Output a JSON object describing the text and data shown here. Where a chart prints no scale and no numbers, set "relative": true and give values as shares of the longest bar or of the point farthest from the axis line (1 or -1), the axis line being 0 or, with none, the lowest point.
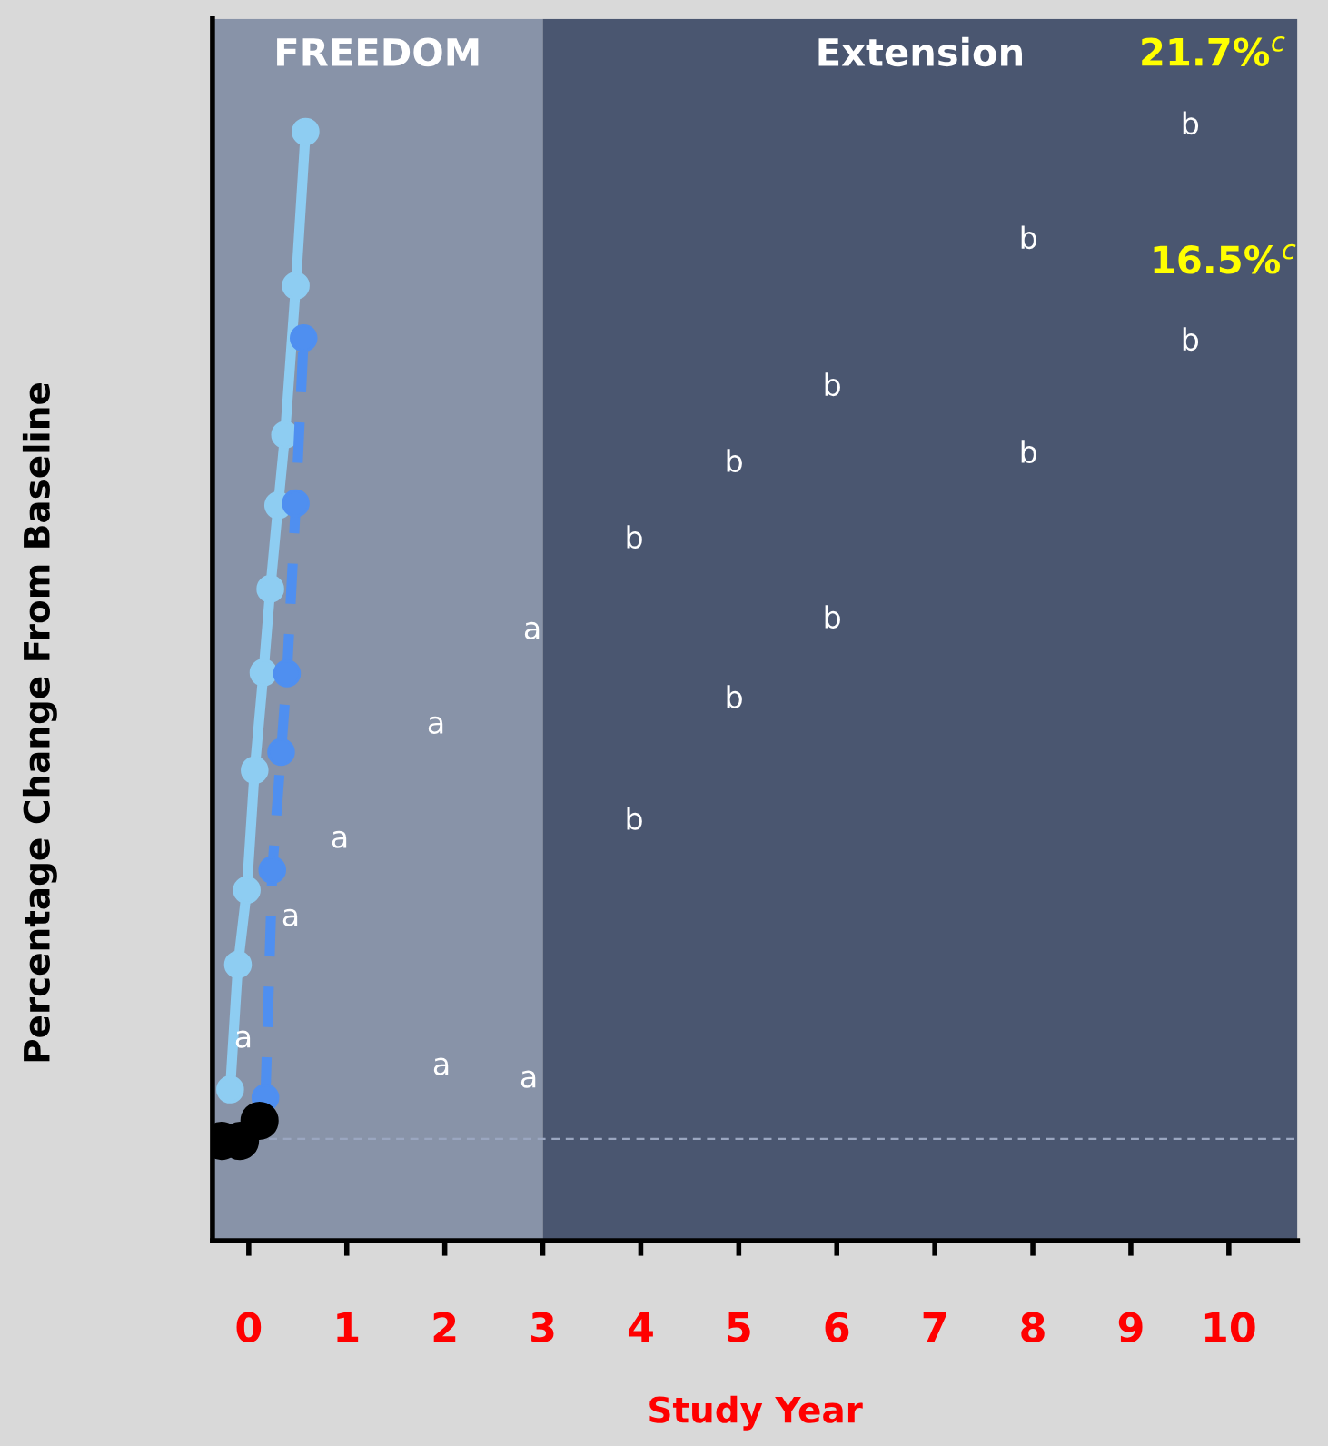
{
  "chart_data": {
    "type": "line",
    "relative": true,
    "xlabel": "Study Year",
    "ylabel": "Percentage Change From Baseline",
    "xlim": [
      -0.37,
      10.7
    ],
    "xticks": [
      0,
      1,
      2,
      3,
      4,
      5,
      6,
      7,
      8,
      9,
      10
    ],
    "grid": false,
    "legend": false,
    "marker": "circle",
    "series": [
      {
        "color": "#8ecdf2",
        "line_style": "solid",
        "x": [
          -0.19,
          -0.11,
          -0.02,
          0.06,
          0.15,
          0.22,
          0.3,
          0.37,
          0.48,
          0.58
        ],
        "values": [
          0.049,
          0.173,
          0.247,
          0.366,
          0.463,
          0.546,
          0.629,
          0.699,
          0.847,
          1.0
        ]
      },
      {
        "color": "#4f8ff0",
        "line_style": "dashed",
        "x": [
          0.17,
          0.24,
          0.33,
          0.39,
          0.48,
          0.56
        ],
        "values": [
          0.041,
          0.267,
          0.384,
          0.462,
          0.631,
          0.795
        ]
      },
      {
        "color": "#000000",
        "type": "scatter",
        "x": [
          -0.28,
          -0.09,
          0.11
        ],
        "values": [
          -0.002,
          -0.002,
          0.018
        ]
      }
    ],
    "ref_lines": [
      {
        "axis": "y",
        "value": 0,
        "color": "#9aa6c0",
        "line_style": "dashed"
      }
    ],
    "bands": [
      {
        "axis": "x",
        "from": -0.37,
        "to": 3,
        "label": "FREEDOM",
        "color": "#8893a8"
      },
      {
        "axis": "x",
        "from": 3,
        "to": 10.7,
        "label": "Extension",
        "color": "#4a5670"
      }
    ],
    "annotations": [
      "a",
      "a",
      "a",
      "a",
      "a",
      "a",
      "a",
      "b",
      "b",
      "b",
      "b",
      "b",
      "b",
      "b",
      "b",
      "b",
      "b",
      "21.7%$^{c}$",
      "16.5%$^{c}$"
    ]
  }
}
